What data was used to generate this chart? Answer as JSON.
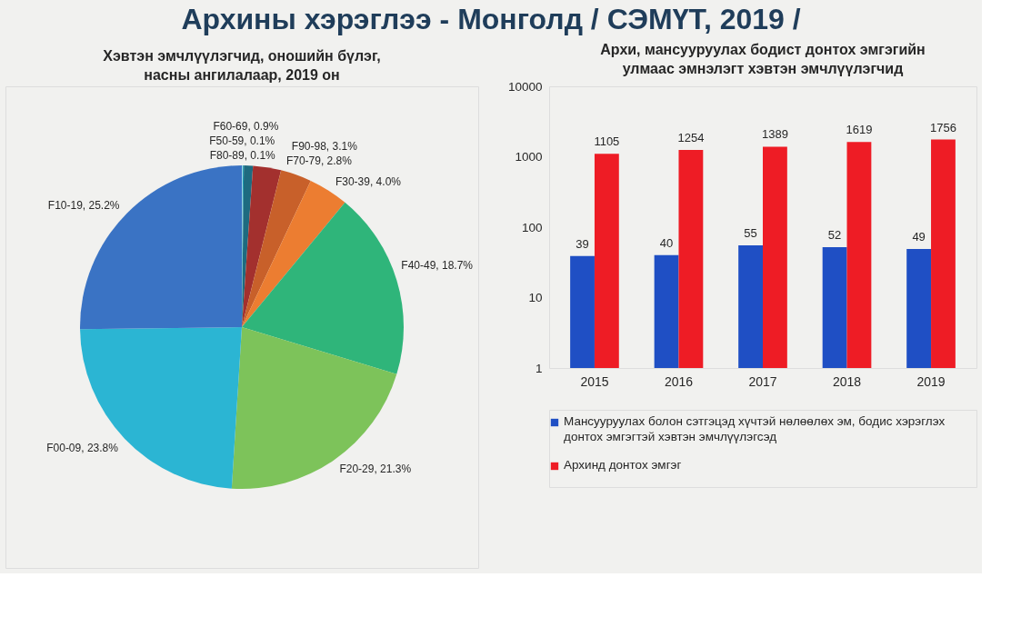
{
  "chart_data": [
    {
      "type": "pie",
      "title": "Архины хэрэглээ - Монголд / СЭМҮТ, 2019 /",
      "subtitle": "Хэвтэн эмчлүүлэгчид, оношийн бүлэг, насны ангилалаар, 2019 он",
      "categories": [
        "F80-89",
        "F50-59",
        "F60-69",
        "F70-79",
        "F90-98",
        "F30-39",
        "F40-49",
        "F20-29",
        "F00-09",
        "F10-19"
      ],
      "values": [
        0.1,
        0.1,
        0.9,
        2.8,
        3.1,
        4.0,
        18.7,
        21.3,
        23.8,
        25.2
      ],
      "colors": [
        "#9fd6e4",
        "#1798b0",
        "#1e6b80",
        "#a3302e",
        "#c8602a",
        "#ec7d31",
        "#2fb57a",
        "#7dc35a",
        "#2bb5d3",
        "#3a73c4"
      ],
      "value_labels": [
        "0.1%",
        "0.1%",
        "0.9%",
        "2.8%",
        "3.1%",
        "4.0%",
        "18.7%",
        "21.3%",
        "23.8%",
        "25.2%"
      ]
    },
    {
      "type": "bar",
      "title": "Архи, мансууруулах бодист донтох эмгэгийн улмаас эмнэлэгт хэвтэн эмчлүүлэгчид",
      "categories": [
        "2015",
        "2016",
        "2017",
        "2018",
        "2019"
      ],
      "series": [
        {
          "name": "Мансууруулах  болон сэтгэцэд хүчтэй нөлөөлөх эм, бодис хэрэглэх донтох эмгэгтэй хэвтэн эмчлүүлэгсэд",
          "color": "#1f4fc4",
          "values": [
            39,
            40,
            55,
            52,
            49
          ]
        },
        {
          "name": "Архинд донтох эмгэг",
          "color": "#ee1c25",
          "values": [
            1105,
            1254,
            1389,
            1619,
            1756
          ]
        }
      ],
      "log": true,
      "ylim": [
        1,
        10000
      ],
      "yticks": [
        1,
        10,
        100,
        1000,
        10000
      ],
      "data_labels": true,
      "legend": "bottom"
    }
  ]
}
